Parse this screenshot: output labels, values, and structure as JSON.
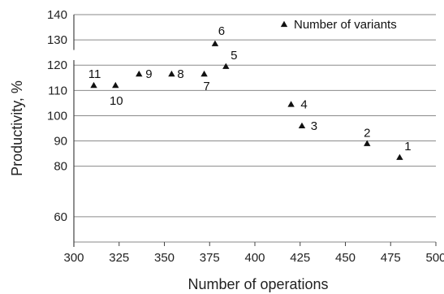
{
  "chart_data": {
    "type": "scatter",
    "xlabel": "Number of operations",
    "ylabel": "Productivity, %",
    "xlim": [
      300,
      500
    ],
    "ylim": [
      50,
      140
    ],
    "xticks": [
      300,
      325,
      350,
      375,
      400,
      425,
      450,
      475,
      500
    ],
    "yticks": [
      60,
      80,
      90,
      100,
      110,
      120,
      130,
      140
    ],
    "grid": "horizontal",
    "legend": {
      "position": "top-right",
      "entries": [
        "Number of variants"
      ]
    },
    "marker": "triangle",
    "series": [
      {
        "name": "Number of variants",
        "points": [
          {
            "label": "1",
            "x": 480,
            "y": 83.5
          },
          {
            "label": "2",
            "x": 462,
            "y": 89
          },
          {
            "label": "3",
            "x": 426,
            "y": 96
          },
          {
            "label": "4",
            "x": 420,
            "y": 104.5
          },
          {
            "label": "5",
            "x": 384,
            "y": 119.5
          },
          {
            "label": "6",
            "x": 378,
            "y": 128.5
          },
          {
            "label": "7",
            "x": 372,
            "y": 116.5
          },
          {
            "label": "8",
            "x": 354,
            "y": 116.5
          },
          {
            "label": "9",
            "x": 336,
            "y": 116.5
          },
          {
            "label": "10",
            "x": 323,
            "y": 112
          },
          {
            "label": "11",
            "x": 311,
            "y": 112
          }
        ]
      }
    ]
  }
}
